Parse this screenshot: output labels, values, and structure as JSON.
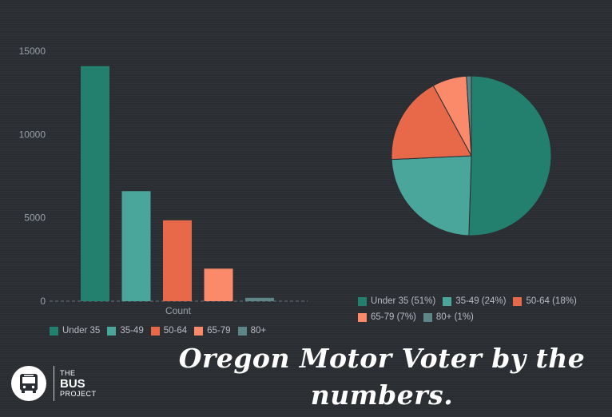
{
  "colors": {
    "under35": "#23806f",
    "age35_49": "#4aa59a",
    "age50_64": "#e8694a",
    "age65_79": "#fb8a6b",
    "age80plus": "#5e8587",
    "axis_text": "#9aa0a6",
    "background": "#2a2e33"
  },
  "chart_data": [
    {
      "type": "bar",
      "categories": [
        "Under 35",
        "35-49",
        "50-64",
        "65-79",
        "80+"
      ],
      "values": [
        14100,
        6600,
        4850,
        1950,
        200
      ],
      "xlabel": "Count",
      "ylim": [
        0,
        15000
      ],
      "yticks": [
        "0",
        "5000",
        "10000",
        "15000"
      ],
      "legend": [
        "Under 35",
        "35-49",
        "50-64",
        "65-79",
        "80+"
      ],
      "legend_position": "bottom",
      "grid": false
    },
    {
      "type": "pie",
      "labels": [
        "Under 35",
        "35-49",
        "50-64",
        "65-79",
        "80+"
      ],
      "values": [
        51,
        24,
        18,
        7,
        1
      ],
      "legend": [
        "Under 35 (51%)",
        "35-49 (24%)",
        "50-64 (18%)",
        "65-79 (7%)",
        "80+ (1%)"
      ],
      "legend_position": "bottom"
    }
  ],
  "title": "Oregon Motor Voter by the numbers.",
  "logo": {
    "line1": "THE",
    "line2": "BUS",
    "line3": "PROJECT",
    "icon": "bus-icon"
  }
}
